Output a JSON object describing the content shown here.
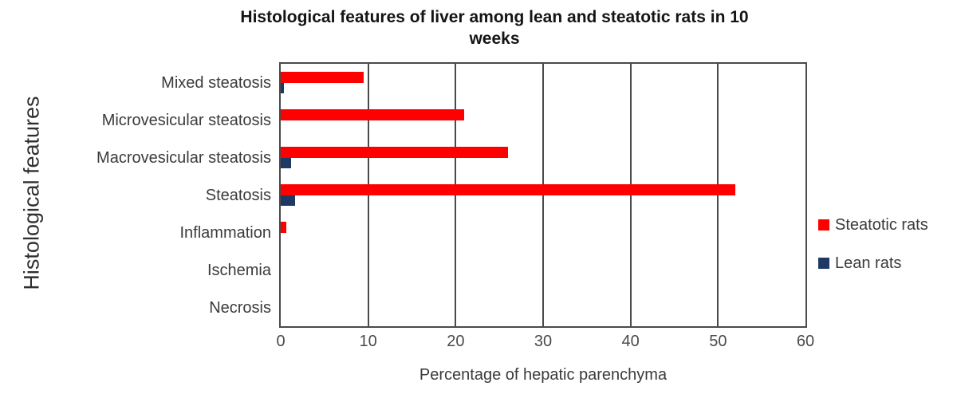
{
  "chart_data": {
    "type": "bar",
    "orientation": "horizontal",
    "title": "Histological features of liver among lean and steatotic rats in 10 weeks",
    "title_lines": [
      "Histological features of liver among lean and steatotic rats in 10",
      "weeks"
    ],
    "xlabel": "Percentage of hepatic parenchyma",
    "ylabel": "Histological features",
    "categories": [
      "Mixed steatosis",
      "Microvesicular steatosis",
      "Macrovesicular  steatosis",
      "Steatosis",
      "Inflammation",
      "Ischemia",
      "Necrosis"
    ],
    "series": [
      {
        "name": "Steatotic rats",
        "color": "#FF0000",
        "values": [
          9.5,
          21,
          26,
          52,
          0.6,
          0,
          0
        ]
      },
      {
        "name": "Lean rats",
        "color": "#1F3864",
        "values": [
          0.4,
          0,
          1.2,
          1.6,
          0,
          0,
          0
        ]
      }
    ],
    "xlim": [
      0,
      60
    ],
    "xticks": [
      0,
      10,
      20,
      30,
      40,
      50,
      60
    ],
    "grid": "vertical",
    "legend_position": "right",
    "colors": {
      "axis_line": "#4a4a4a",
      "text": "#3b3b3b",
      "title": "#141414"
    }
  }
}
